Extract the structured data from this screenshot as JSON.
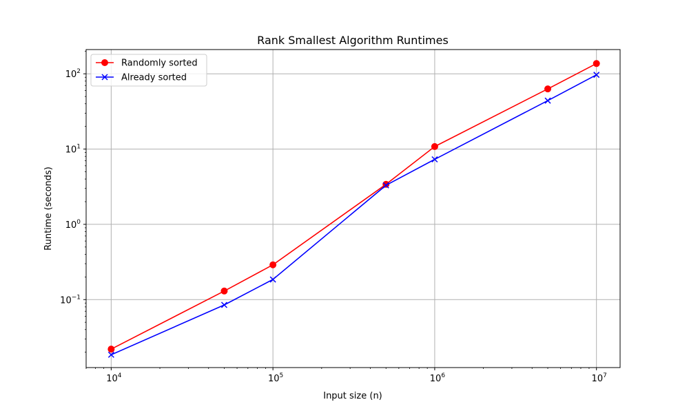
{
  "chart_data": {
    "type": "line",
    "title": "Rank Smallest Algorithm Runtimes",
    "xlabel": "Input size (n)",
    "ylabel": "Runtime (seconds)",
    "xscale": "log",
    "yscale": "log",
    "xlim": [
      7000,
      14000000
    ],
    "ylim": [
      0.0125,
      210
    ],
    "grid": true,
    "legend_position": "top-left",
    "x": [
      10000,
      50000,
      100000,
      500000,
      1000000,
      5000000,
      10000000
    ],
    "x_ticks": [
      {
        "value": 10000,
        "base": "10",
        "exp": "4"
      },
      {
        "value": 100000,
        "base": "10",
        "exp": "5"
      },
      {
        "value": 1000000,
        "base": "10",
        "exp": "6"
      },
      {
        "value": 10000000,
        "base": "10",
        "exp": "7"
      }
    ],
    "y_ticks": [
      {
        "value": 0.1,
        "base": "10",
        "exp": "−1"
      },
      {
        "value": 1,
        "base": "10",
        "exp": "0"
      },
      {
        "value": 10,
        "base": "10",
        "exp": "1"
      },
      {
        "value": 100,
        "base": "10",
        "exp": "2"
      }
    ],
    "series": [
      {
        "name": "Randomly sorted",
        "color": "#ff0000",
        "marker": "circle",
        "values": [
          0.022,
          0.13,
          0.29,
          3.4,
          10.8,
          63,
          137
        ]
      },
      {
        "name": "Already sorted",
        "color": "#0000ff",
        "marker": "x",
        "values": [
          0.0185,
          0.085,
          0.185,
          3.3,
          7.3,
          44,
          97
        ]
      }
    ]
  }
}
